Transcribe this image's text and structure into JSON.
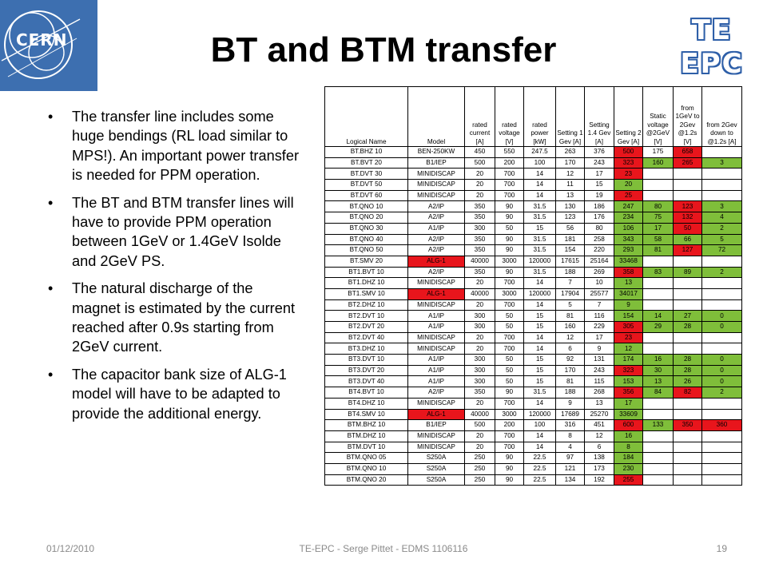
{
  "title": "BT and BTM transfer",
  "logos": {
    "left_text": "CERN",
    "right_line1": "TE",
    "right_line2": "EPC",
    "colors": {
      "cern_blue": "#3d6fb0",
      "te_epc_blue": "#2e5fa8"
    }
  },
  "bullets": [
    "The transfer line includes some huge bendings (RL load similar to MPS!). An important power transfer is needed for PPM operation.",
    "The BT and BTM transfer lines will have to provide PPM operation between 1GeV or 1.4GeV Isolde and 2GeV PS.",
    "The natural discharge of the magnet is estimated by the current reached after 0.9s starting from 2GeV current.",
    "The capacitor bank size of ALG-1 model will have to be adapted to provide the additional energy."
  ],
  "table": {
    "cell_colors": {
      "red": "#e8151c",
      "green": "#7fbe3a"
    },
    "headers": [
      "Logical Name",
      "Model",
      "rated current [A]",
      "rated voltage [V]",
      "rated power [kW]",
      "Setting 1 Gev [A]",
      "Setting 1.4 Gev [A]",
      "Setting 2 Gev [A]",
      "Static voltage @2GeV [V]",
      "from 1GeV to 2Gev @1.2s [V]",
      "from 2Gev down to @1.2s [A]"
    ],
    "rows": [
      {
        "cells": [
          "BT.BHZ 10",
          "BEN-250KW",
          "450",
          "550",
          "247.5",
          "263",
          "376",
          "500",
          "175",
          "658",
          ""
        ],
        "colors": {
          "7": "red",
          "9": "red"
        }
      },
      {
        "cells": [
          "BT.BVT 20",
          "B1/IEP",
          "500",
          "200",
          "100",
          "170",
          "243",
          "323",
          "160",
          "265",
          "3"
        ],
        "colors": {
          "7": "red",
          "8": "green",
          "9": "red",
          "10": "green"
        }
      },
      {
        "cells": [
          "BT.DVT 30",
          "MINIDISCAP",
          "20",
          "700",
          "14",
          "12",
          "17",
          "23",
          "",
          "",
          ""
        ],
        "colors": {
          "7": "red"
        }
      },
      {
        "cells": [
          "BT.DVT 50",
          "MINIDISCAP",
          "20",
          "700",
          "14",
          "11",
          "15",
          "20",
          "",
          "",
          ""
        ],
        "colors": {
          "7": "green"
        }
      },
      {
        "cells": [
          "BT.DVT 60",
          "MINIDISCAP",
          "20",
          "700",
          "14",
          "13",
          "19",
          "25",
          "",
          "",
          ""
        ],
        "colors": {
          "7": "red"
        }
      },
      {
        "cells": [
          "BT.QNO 10",
          "A2/IP",
          "350",
          "90",
          "31.5",
          "130",
          "186",
          "247",
          "80",
          "123",
          "3"
        ],
        "colors": {
          "7": "green",
          "8": "green",
          "9": "red",
          "10": "green"
        }
      },
      {
        "cells": [
          "BT.QNO 20",
          "A2/IP",
          "350",
          "90",
          "31.5",
          "123",
          "176",
          "234",
          "75",
          "132",
          "4"
        ],
        "colors": {
          "7": "green",
          "8": "green",
          "9": "red",
          "10": "green"
        }
      },
      {
        "cells": [
          "BT.QNO 30",
          "A1/IP",
          "300",
          "50",
          "15",
          "56",
          "80",
          "106",
          "17",
          "50",
          "2"
        ],
        "colors": {
          "7": "green",
          "8": "green",
          "9": "red",
          "10": "green"
        }
      },
      {
        "cells": [
          "BT.QNO 40",
          "A2/IP",
          "350",
          "90",
          "31.5",
          "181",
          "258",
          "343",
          "58",
          "66",
          "5"
        ],
        "colors": {
          "7": "green",
          "8": "green",
          "9": "green",
          "10": "green"
        }
      },
      {
        "cells": [
          "BT.QNO 50",
          "A2/IP",
          "350",
          "90",
          "31.5",
          "154",
          "220",
          "293",
          "81",
          "127",
          "72"
        ],
        "colors": {
          "7": "green",
          "8": "green",
          "9": "red",
          "10": "green"
        }
      },
      {
        "cells": [
          "BT.SMV 20",
          "ALG-1",
          "40000",
          "3000",
          "120000",
          "17615",
          "25164",
          "33468",
          "",
          "",
          ""
        ],
        "colors": {
          "1": "red",
          "7": "green"
        }
      },
      {
        "cells": [
          "BT1.BVT 10",
          "A2/IP",
          "350",
          "90",
          "31.5",
          "188",
          "269",
          "358",
          "83",
          "89",
          "2"
        ],
        "colors": {
          "7": "red",
          "8": "green",
          "9": "green",
          "10": "green"
        }
      },
      {
        "cells": [
          "BT1.DHZ 10",
          "MINIDISCAP",
          "20",
          "700",
          "14",
          "7",
          "10",
          "13",
          "",
          "",
          ""
        ],
        "colors": {
          "7": "green"
        }
      },
      {
        "cells": [
          "BT1.SMV 10",
          "ALG-1",
          "40000",
          "3000",
          "120000",
          "17904",
          "25577",
          "34017",
          "",
          "",
          ""
        ],
        "colors": {
          "1": "red",
          "7": "green"
        }
      },
      {
        "cells": [
          "BT2.DHZ 10",
          "MINIDISCAP",
          "20",
          "700",
          "14",
          "5",
          "7",
          "9",
          "",
          "",
          ""
        ],
        "colors": {
          "7": "green"
        }
      },
      {
        "cells": [
          "BT2.DVT 10",
          "A1/IP",
          "300",
          "50",
          "15",
          "81",
          "116",
          "154",
          "14",
          "27",
          "0"
        ],
        "colors": {
          "7": "green",
          "8": "green",
          "9": "green",
          "10": "green"
        }
      },
      {
        "cells": [
          "BT2.DVT 20",
          "A1/IP",
          "300",
          "50",
          "15",
          "160",
          "229",
          "305",
          "29",
          "28",
          "0"
        ],
        "colors": {
          "7": "red",
          "8": "green",
          "9": "green",
          "10": "green"
        }
      },
      {
        "cells": [
          "BT2.DVT 40",
          "MINIDISCAP",
          "20",
          "700",
          "14",
          "12",
          "17",
          "23",
          "",
          "",
          ""
        ],
        "colors": {
          "7": "red"
        }
      },
      {
        "cells": [
          "BT3.DHZ 10",
          "MINIDISCAP",
          "20",
          "700",
          "14",
          "6",
          "9",
          "12",
          "",
          "",
          ""
        ],
        "colors": {
          "7": "green"
        }
      },
      {
        "cells": [
          "BT3.DVT 10",
          "A1/IP",
          "300",
          "50",
          "15",
          "92",
          "131",
          "174",
          "16",
          "28",
          "0"
        ],
        "colors": {
          "7": "green",
          "8": "green",
          "9": "green",
          "10": "green"
        }
      },
      {
        "cells": [
          "BT3.DVT 20",
          "A1/IP",
          "300",
          "50",
          "15",
          "170",
          "243",
          "323",
          "30",
          "28",
          "0"
        ],
        "colors": {
          "7": "red",
          "8": "green",
          "9": "green",
          "10": "green"
        }
      },
      {
        "cells": [
          "BT3.DVT 40",
          "A1/IP",
          "300",
          "50",
          "15",
          "81",
          "115",
          "153",
          "13",
          "26",
          "0"
        ],
        "colors": {
          "7": "green",
          "8": "green",
          "9": "green",
          "10": "green"
        }
      },
      {
        "cells": [
          "BT4.BVT 10",
          "A2/IP",
          "350",
          "90",
          "31.5",
          "188",
          "268",
          "356",
          "84",
          "82",
          "2"
        ],
        "colors": {
          "7": "red",
          "8": "green",
          "9": "red",
          "10": "green"
        }
      },
      {
        "cells": [
          "BT4.DHZ 10",
          "MINIDISCAP",
          "20",
          "700",
          "14",
          "9",
          "13",
          "17",
          "",
          "",
          ""
        ],
        "colors": {
          "7": "green"
        }
      },
      {
        "cells": [
          "BT4.SMV 10",
          "ALG-1",
          "40000",
          "3000",
          "120000",
          "17689",
          "25270",
          "33609",
          "",
          "",
          ""
        ],
        "colors": {
          "1": "red",
          "7": "green"
        }
      },
      {
        "cells": [
          "BTM.BHZ 10",
          "B1/IEP",
          "500",
          "200",
          "100",
          "316",
          "451",
          "600",
          "133",
          "350",
          "360"
        ],
        "colors": {
          "7": "red",
          "8": "green",
          "9": "red",
          "10": "red"
        }
      },
      {
        "cells": [
          "BTM.DHZ 10",
          "MINIDISCAP",
          "20",
          "700",
          "14",
          "8",
          "12",
          "16",
          "",
          "",
          ""
        ],
        "colors": {
          "7": "green"
        }
      },
      {
        "cells": [
          "BTM.DVT 10",
          "MINIDISCAP",
          "20",
          "700",
          "14",
          "4",
          "6",
          "8",
          "",
          "",
          ""
        ],
        "colors": {
          "7": "green"
        }
      },
      {
        "cells": [
          "BTM.QNO 05",
          "S250A",
          "250",
          "90",
          "22.5",
          "97",
          "138",
          "184",
          "",
          "",
          ""
        ],
        "colors": {
          "7": "green"
        }
      },
      {
        "cells": [
          "BTM.QNO 10",
          "S250A",
          "250",
          "90",
          "22.5",
          "121",
          "173",
          "230",
          "",
          "",
          ""
        ],
        "colors": {
          "7": "green"
        }
      },
      {
        "cells": [
          "BTM.QNO 20",
          "S250A",
          "250",
          "90",
          "22.5",
          "134",
          "192",
          "255",
          "",
          "",
          ""
        ],
        "colors": {
          "7": "red"
        }
      }
    ]
  },
  "footer": {
    "date": "01/12/2010",
    "center": "TE-EPC - Serge Pittet - EDMS 1106116",
    "page": "19"
  }
}
